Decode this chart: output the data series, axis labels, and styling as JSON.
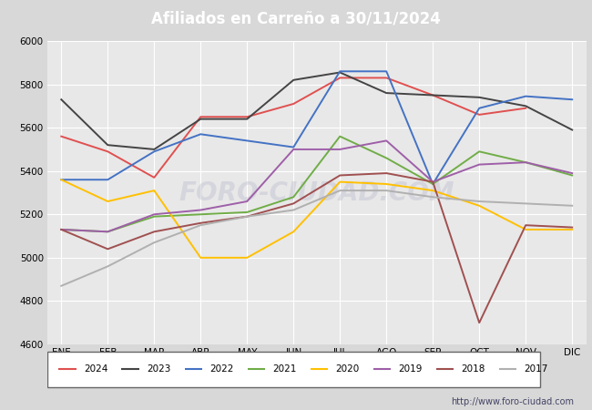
{
  "title": "Afiliados en Carreño a 30/11/2024",
  "title_bg_color": "#4472c4",
  "title_text_color": "white",
  "ylim": [
    4600,
    6000
  ],
  "yticks": [
    4600,
    4800,
    5000,
    5200,
    5400,
    5600,
    5800,
    6000
  ],
  "months": [
    "ENE",
    "FEB",
    "MAR",
    "ABR",
    "MAY",
    "JUN",
    "JUL",
    "AGO",
    "SEP",
    "OCT",
    "NOV",
    "DIC"
  ],
  "watermark": "FORO-CIUDAD.COM",
  "url": "http://www.foro-ciudad.com",
  "series": {
    "2024": {
      "color": "#e05050",
      "data": [
        5560,
        5490,
        5370,
        5650,
        5650,
        5710,
        5830,
        5830,
        5750,
        5660,
        5690,
        null
      ]
    },
    "2023": {
      "color": "#444444",
      "data": [
        5730,
        5520,
        5500,
        5640,
        5640,
        5820,
        5855,
        5760,
        5750,
        5740,
        5700,
        5590
      ]
    },
    "2022": {
      "color": "#4472c4",
      "data": [
        5360,
        5360,
        5490,
        5570,
        5540,
        5510,
        5860,
        5860,
        5340,
        5690,
        5745,
        5730
      ]
    },
    "2021": {
      "color": "#70ad47",
      "data": [
        5130,
        5120,
        5190,
        5200,
        5210,
        5280,
        5560,
        5460,
        5340,
        5490,
        5440,
        5380
      ]
    },
    "2020": {
      "color": "#ffc000",
      "data": [
        5360,
        5260,
        5310,
        5000,
        5000,
        5120,
        5350,
        5340,
        5310,
        5240,
        5130,
        5130
      ]
    },
    "2019": {
      "color": "#9e5fa8",
      "data": [
        5130,
        5120,
        5200,
        5220,
        5260,
        5500,
        5500,
        5540,
        5350,
        5430,
        5440,
        5390
      ]
    },
    "2018": {
      "color": "#a05050",
      "data": [
        5130,
        5040,
        5120,
        5160,
        5190,
        5250,
        5380,
        5390,
        5350,
        4700,
        5150,
        5140
      ]
    },
    "2017": {
      "color": "#b0b0b0",
      "data": [
        4870,
        4960,
        5070,
        5150,
        5190,
        5220,
        5310,
        5310,
        5280,
        5260,
        5250,
        5240
      ]
    }
  },
  "legend_order": [
    "2024",
    "2023",
    "2022",
    "2021",
    "2020",
    "2019",
    "2018",
    "2017"
  ],
  "fig_bg_color": "#d8d8d8",
  "plot_bg_color": "#e8e8e8",
  "grid_color": "white",
  "watermark_color": "#c0c0d0",
  "watermark_alpha": 0.45,
  "linewidth": 1.4
}
